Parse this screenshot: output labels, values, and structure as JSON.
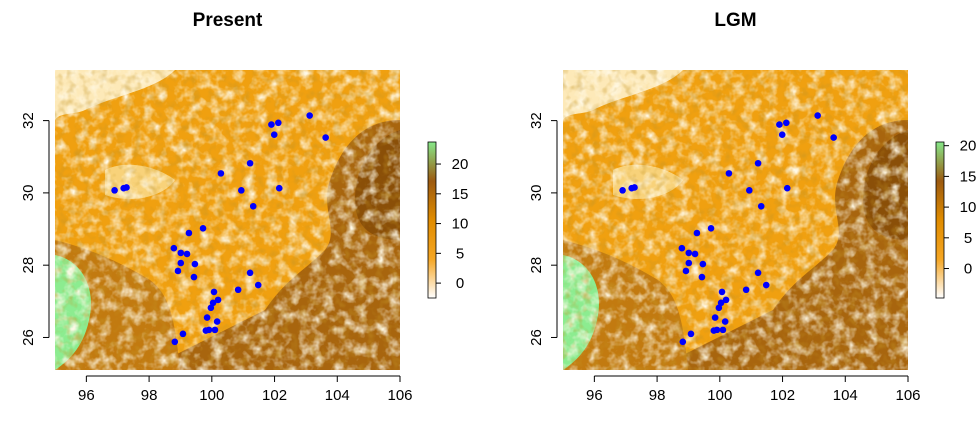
{
  "chart_data": [
    {
      "type": "scatter",
      "title": "Present",
      "xlim": [
        95,
        106
      ],
      "ylim": [
        25.1,
        33.4
      ],
      "xticks": [
        96,
        98,
        100,
        102,
        104,
        106
      ],
      "yticks": [
        26,
        28,
        30,
        32
      ],
      "series": [
        {
          "color": "#0000ff",
          "x": [
            101.9,
            102.12,
            101.99,
            103.12,
            103.63,
            102.15,
            101.22,
            100.94,
            100.29,
            101.32,
            96.9,
            97.19,
            97.28,
            99.72,
            99.27,
            98.79,
            99.01,
            99.21,
            99.01,
            99.46,
            98.92,
            99.43,
            101.22,
            100.84,
            101.48,
            100.07,
            99.97,
            99.85,
            99.91,
            100.1,
            100.17,
            100.04,
            100.2,
            99.81,
            99.08,
            98.82
          ],
          "values": [
            31.89,
            31.94,
            31.61,
            32.14,
            31.53,
            30.13,
            30.82,
            30.07,
            30.54,
            29.63,
            30.07,
            30.13,
            30.15,
            29.02,
            28.89,
            28.47,
            28.34,
            28.31,
            28.06,
            28.03,
            27.84,
            27.67,
            27.79,
            27.32,
            27.45,
            27.26,
            26.82,
            26.55,
            26.21,
            26.21,
            26.44,
            26.96,
            27.04,
            26.19,
            26.1,
            25.88
          ]
        }
      ],
      "colorbar": {
        "lim": [
          -2.5,
          23.7
        ],
        "ticks": [
          0,
          5,
          10,
          15,
          20
        ],
        "colors": [
          "#ffffff",
          "#f5a623",
          "#e08c00",
          "#9c5a10",
          "#86e88a"
        ]
      }
    },
    {
      "type": "scatter",
      "title": "LGM",
      "xlim": [
        95,
        106
      ],
      "ylim": [
        25.1,
        33.4
      ],
      "xticks": [
        96,
        98,
        100,
        102,
        104,
        106
      ],
      "yticks": [
        26,
        28,
        30,
        32
      ],
      "series": [
        {
          "color": "#0000ff",
          "x": [
            101.9,
            102.12,
            101.99,
            103.12,
            103.63,
            102.15,
            101.22,
            100.94,
            100.29,
            101.32,
            96.9,
            97.19,
            97.28,
            99.72,
            99.27,
            98.79,
            99.01,
            99.21,
            99.01,
            99.46,
            98.92,
            99.43,
            101.22,
            100.84,
            101.48,
            100.07,
            99.97,
            99.85,
            99.91,
            100.1,
            100.17,
            100.04,
            100.2,
            99.81,
            99.08,
            98.82
          ],
          "values": [
            31.89,
            31.94,
            31.61,
            32.14,
            31.53,
            30.13,
            30.82,
            30.07,
            30.54,
            29.63,
            30.07,
            30.13,
            30.15,
            29.02,
            28.89,
            28.47,
            28.34,
            28.31,
            28.06,
            28.03,
            27.84,
            27.67,
            27.79,
            27.32,
            27.45,
            27.26,
            26.82,
            26.55,
            26.21,
            26.21,
            26.44,
            26.96,
            27.04,
            26.19,
            26.1,
            25.88
          ]
        }
      ],
      "colorbar": {
        "lim": [
          -4.8,
          20.6
        ],
        "ticks": [
          0,
          5,
          10,
          15,
          20
        ],
        "colors": [
          "#ffffff",
          "#f5a623",
          "#e08c00",
          "#9c5a10",
          "#86e88a"
        ]
      }
    }
  ]
}
